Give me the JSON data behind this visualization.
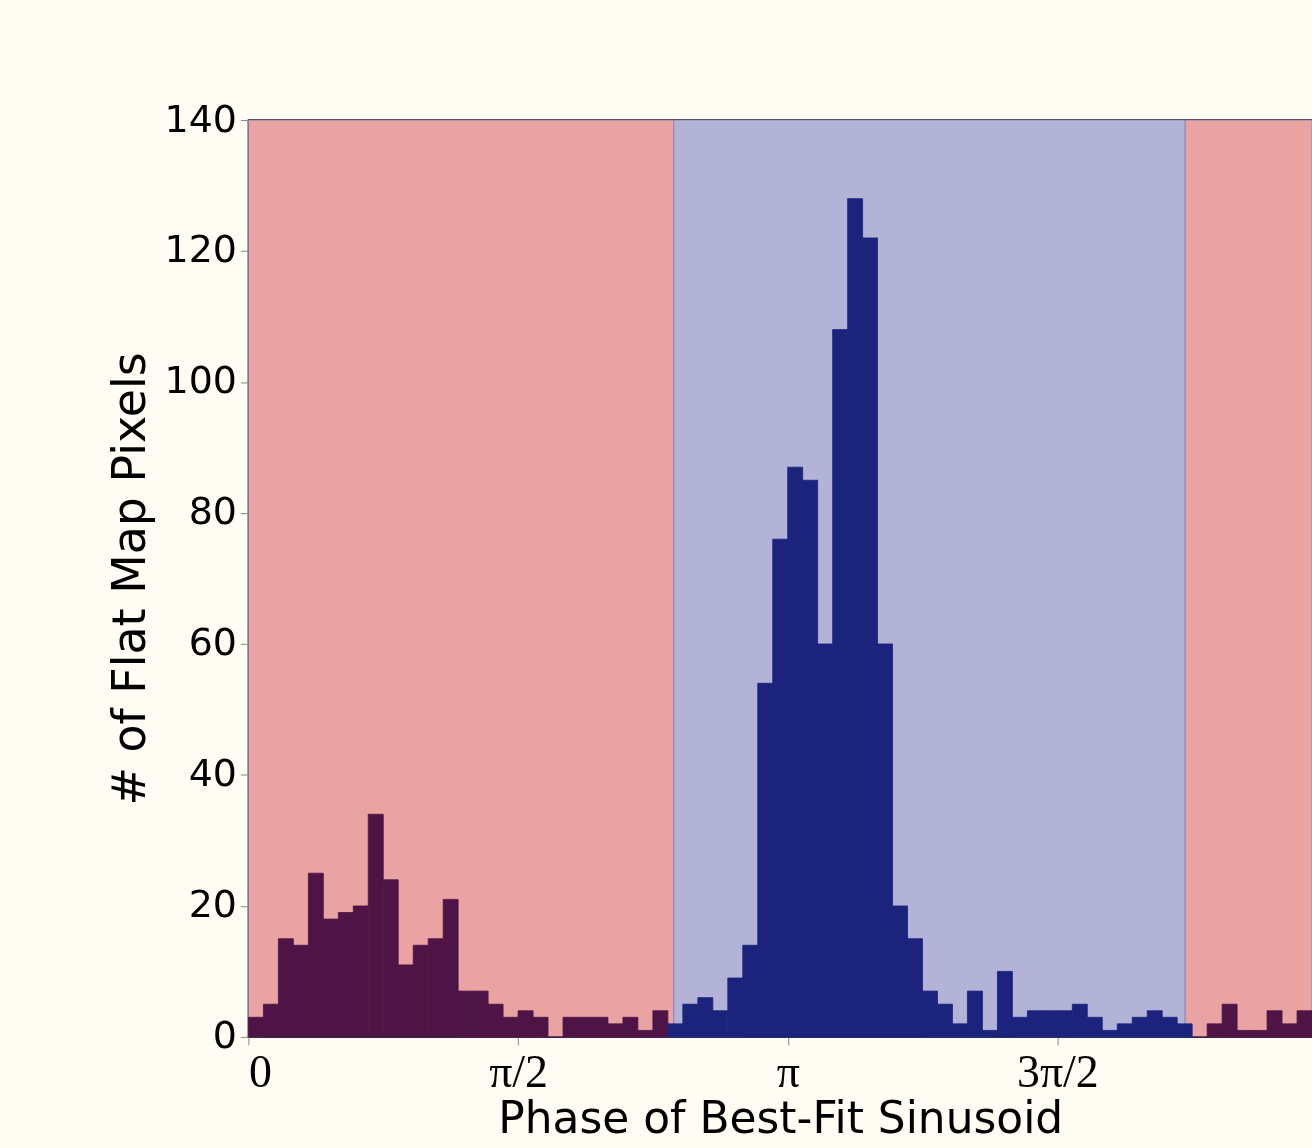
{
  "chart_data": {
    "type": "histogram",
    "xlabel": "Phase of Best-Fit Sinusoid",
    "ylabel": "# of Flat Map Pixels",
    "bins": [
      0,
      0.0873,
      0.1745,
      0.2618,
      0.3491,
      0.4363,
      0.5236,
      0.6109,
      0.6981,
      0.7854,
      0.8727,
      0.9599,
      1.0472,
      1.1345,
      1.2217,
      1.309,
      1.3963,
      1.4835,
      1.5708,
      1.6581,
      1.7453,
      1.8326,
      1.9199,
      2.0071,
      2.0944,
      2.1817,
      2.2689,
      2.3562,
      2.4435,
      2.5307,
      2.618,
      2.7053,
      2.7925,
      2.8798,
      2.9671,
      3.0543,
      3.1416,
      3.2289,
      3.3161,
      3.4034,
      3.4907,
      3.5779,
      3.6652,
      3.7525,
      3.8397,
      3.927,
      4.0143,
      4.1015,
      4.1888,
      4.2761,
      4.3633,
      4.4506,
      4.5379,
      4.6251,
      4.7124,
      4.7997,
      4.8869,
      4.9742,
      5.0615,
      5.1487,
      5.236,
      5.3233,
      5.4105,
      5.4978,
      5.5851,
      5.6723,
      5.7596,
      5.8469,
      5.9341,
      6.0214,
      6.1087,
      6.1959
    ],
    "values": [
      3,
      5,
      15,
      14,
      25,
      18,
      19,
      20,
      34,
      24,
      11,
      14,
      15,
      21,
      7,
      7,
      5,
      3,
      4,
      3,
      0,
      3,
      3,
      3,
      2,
      3,
      1,
      4,
      2,
      5,
      6,
      4,
      9,
      14,
      54,
      76,
      87,
      85,
      60,
      108,
      128,
      122,
      60,
      20,
      15,
      7,
      5,
      2,
      7,
      1,
      10,
      3,
      4,
      4,
      4,
      5,
      3,
      1,
      2,
      3,
      4,
      3,
      2,
      0,
      2,
      5,
      1,
      1,
      4,
      2,
      4
    ],
    "colors": [
      "#4f1446",
      "#4f1446",
      "#4f1446",
      "#4f1446",
      "#4f1446",
      "#4f1446",
      "#4f1446",
      "#4f1446",
      "#4f1446",
      "#4f1446",
      "#4f1446",
      "#4f1446",
      "#4f1446",
      "#4f1446",
      "#4f1446",
      "#4f1446",
      "#4f1446",
      "#4f1446",
      "#4f1446",
      "#4f1446",
      "#4f1446",
      "#4f1446",
      "#4f1446",
      "#4f1446",
      "#4f1446",
      "#4f1446",
      "#4f1446",
      "#4f1446",
      "#1b237c",
      "#1b237c",
      "#1b237c",
      "#1b237c",
      "#1b237c",
      "#1b237c",
      "#1b237c",
      "#1b237c",
      "#1b237c",
      "#1b237c",
      "#1b237c",
      "#1b237c",
      "#1b237c",
      "#1b237c",
      "#1b237c",
      "#1b237c",
      "#1b237c",
      "#1b237c",
      "#1b237c",
      "#1b237c",
      "#1b237c",
      "#1b237c",
      "#1b237c",
      "#1b237c",
      "#1b237c",
      "#1b237c",
      "#1b237c",
      "#1b237c",
      "#1b237c",
      "#1b237c",
      "#1b237c",
      "#1b237c",
      "#1b237c",
      "#1b237c",
      "#1b237c",
      "#4f1446",
      "#4f1446",
      "#4f1446",
      "#4f1446",
      "#4f1446",
      "#4f1446",
      "#4f1446",
      "#4f1446"
    ],
    "xlim": [
      0,
      6.1959
    ],
    "xticks": [
      0,
      {
        "value": 1.5708,
        "label": "π/2"
      },
      {
        "value": 3.1416,
        "label": "π"
      },
      {
        "value": 4.7124,
        "label": "3π/2"
      }
    ],
    "ylim": [
      0,
      140
    ],
    "yticks": [
      0,
      20,
      40,
      60,
      80,
      100,
      120,
      140
    ],
    "bands": [
      {
        "axis": "x",
        "from": 0,
        "to": 2.478,
        "color": "#e9a3a3"
      },
      {
        "axis": "x",
        "from": 2.478,
        "to": 5.457,
        "color": "#b3b3d8"
      },
      {
        "axis": "x",
        "from": 5.457,
        "to": 6.1959,
        "color": "#e9a3a3"
      }
    ],
    "grid": false,
    "legend": false
  }
}
